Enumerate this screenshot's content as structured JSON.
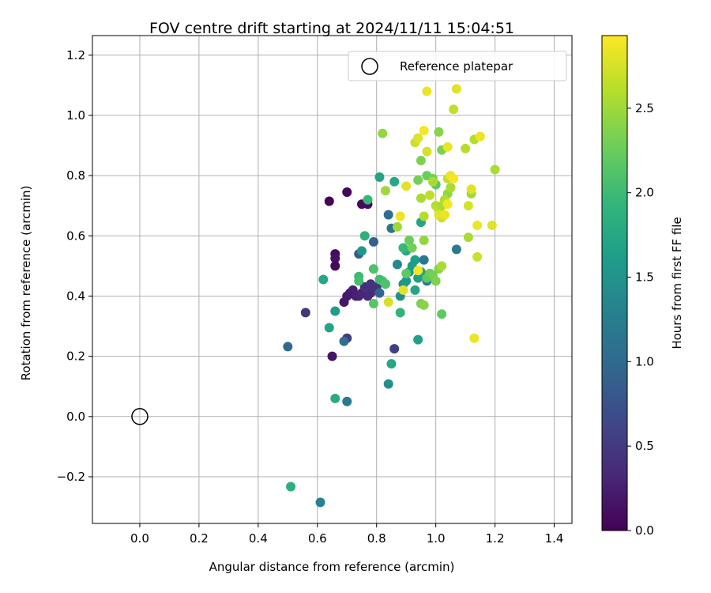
{
  "chart_data": {
    "type": "scatter",
    "title": "FOV centre drift starting at 2024/11/11 15:04:51",
    "xlabel": "Angular distance from reference (arcmin)",
    "ylabel": "Rotation from reference (arcmin)",
    "xlim": [
      -0.16,
      1.46
    ],
    "ylim": [
      -0.355,
      1.265
    ],
    "xticks": [
      0.0,
      0.2,
      0.4,
      0.6,
      0.8,
      1.0,
      1.2,
      1.4
    ],
    "xtick_labels": [
      "0.0",
      "0.2",
      "0.4",
      "0.6",
      "0.8",
      "1.0",
      "1.2",
      "1.4"
    ],
    "yticks": [
      -0.2,
      0.0,
      0.2,
      0.4,
      0.6,
      0.8,
      1.0,
      1.2
    ],
    "ytick_labels": [
      "−0.2",
      "0.0",
      "0.2",
      "0.4",
      "0.6",
      "0.8",
      "1.0",
      "1.2"
    ],
    "grid": true,
    "legend": {
      "position": "top-right",
      "label": "Reference platepar",
      "marker": "open-circle"
    },
    "reference_point": {
      "x": 0.0,
      "y": 0.0
    },
    "colorbar": {
      "label": "Hours from first FF file",
      "colormap": "viridis",
      "range": [
        0.0,
        2.93
      ],
      "ticks": [
        0.0,
        0.5,
        1.0,
        1.5,
        2.0,
        2.5
      ],
      "tick_labels": [
        "0.0",
        "0.5",
        "1.0",
        "1.5",
        "2.0",
        "2.5"
      ]
    },
    "viridis_stops": [
      "#440154",
      "#482878",
      "#3e4989",
      "#31688e",
      "#26828e",
      "#1f9e89",
      "#35b779",
      "#6ece58",
      "#b5de2b",
      "#fde725"
    ],
    "series": [
      {
        "points": [
          [
            0.7,
            0.745,
            0.05
          ],
          [
            0.64,
            0.715,
            0.02
          ],
          [
            0.75,
            0.705,
            0.08
          ],
          [
            0.77,
            0.705,
            0.1
          ],
          [
            0.66,
            0.54,
            0.12
          ],
          [
            0.66,
            0.525,
            0.14
          ],
          [
            0.66,
            0.5,
            0.06
          ],
          [
            0.69,
            0.38,
            0.18
          ],
          [
            0.7,
            0.4,
            0.2
          ],
          [
            0.71,
            0.41,
            0.22
          ],
          [
            0.72,
            0.42,
            0.24
          ],
          [
            0.73,
            0.4,
            0.26
          ],
          [
            0.74,
            0.4,
            0.28
          ],
          [
            0.75,
            0.41,
            0.3
          ],
          [
            0.76,
            0.41,
            0.32
          ],
          [
            0.77,
            0.4,
            0.34
          ],
          [
            0.78,
            0.41,
            0.36
          ],
          [
            0.79,
            0.42,
            0.38
          ],
          [
            0.76,
            0.43,
            0.4
          ],
          [
            0.78,
            0.44,
            0.42
          ],
          [
            0.8,
            0.43,
            0.44
          ],
          [
            0.56,
            0.345,
            0.45
          ],
          [
            0.7,
            0.26,
            0.5
          ],
          [
            0.65,
            0.2,
            0.15
          ],
          [
            0.86,
            0.225,
            0.55
          ],
          [
            0.74,
            0.54,
            0.85
          ],
          [
            0.79,
            0.58,
            0.9
          ],
          [
            0.81,
            0.41,
            0.95
          ],
          [
            0.83,
            0.44,
            1.0
          ],
          [
            0.84,
            0.67,
            1.05
          ],
          [
            0.85,
            0.625,
            1.1
          ],
          [
            0.5,
            0.232,
            1.0
          ],
          [
            0.69,
            0.25,
            1.05
          ],
          [
            0.7,
            0.05,
            1.2
          ],
          [
            0.61,
            -0.285,
            1.3
          ],
          [
            0.87,
            0.505,
            1.4
          ],
          [
            0.88,
            0.4,
            1.45
          ],
          [
            0.89,
            0.44,
            1.5
          ],
          [
            0.9,
            0.45,
            1.55
          ],
          [
            0.91,
            0.48,
            1.6
          ],
          [
            0.92,
            0.5,
            1.62
          ],
          [
            0.93,
            0.52,
            1.64
          ],
          [
            0.94,
            0.46,
            1.66
          ],
          [
            0.95,
            0.48,
            1.68
          ],
          [
            0.96,
            0.52,
            1.18
          ],
          [
            0.97,
            0.45,
            1.2
          ],
          [
            1.07,
            0.555,
            1.22
          ],
          [
            0.95,
            0.645,
            1.7
          ],
          [
            0.93,
            0.42,
            1.72
          ],
          [
            0.9,
            0.55,
            1.74
          ],
          [
            0.62,
            0.455,
            1.75
          ],
          [
            0.66,
            0.35,
            1.6
          ],
          [
            0.64,
            0.295,
            1.7
          ],
          [
            0.66,
            0.06,
            1.8
          ],
          [
            0.51,
            -0.233,
            1.85
          ],
          [
            0.84,
            0.108,
            1.45
          ],
          [
            0.85,
            0.175,
            1.75
          ],
          [
            0.94,
            0.255,
            1.65
          ],
          [
            0.75,
            0.55,
            1.55
          ],
          [
            0.76,
            0.6,
            1.85
          ],
          [
            0.77,
            0.72,
            1.95
          ],
          [
            0.81,
            0.795,
            1.7
          ],
          [
            0.86,
            0.78,
            1.75
          ],
          [
            0.88,
            0.345,
            1.9
          ],
          [
            0.89,
            0.56,
            1.95
          ],
          [
            0.74,
            0.465,
            2.0
          ],
          [
            0.74,
            0.45,
            2.05
          ],
          [
            0.79,
            0.49,
            2.1
          ],
          [
            0.79,
            0.375,
            2.15
          ],
          [
            0.81,
            0.455,
            2.0
          ],
          [
            0.82,
            0.45,
            2.05
          ],
          [
            0.83,
            0.44,
            2.1
          ],
          [
            0.9,
            0.475,
            2.2
          ],
          [
            0.91,
            0.585,
            2.25
          ],
          [
            0.92,
            0.56,
            2.3
          ],
          [
            0.95,
            0.375,
            2.35
          ],
          [
            0.96,
            0.37,
            2.4
          ],
          [
            0.97,
            0.46,
            2.2
          ],
          [
            0.98,
            0.475,
            2.25
          ],
          [
            0.99,
            0.47,
            2.3
          ],
          [
            1.0,
            0.45,
            2.35
          ],
          [
            1.01,
            0.49,
            2.4
          ],
          [
            1.02,
            0.34,
            2.2
          ],
          [
            0.82,
            0.94,
            2.45
          ],
          [
            0.83,
            0.75,
            2.5
          ],
          [
            0.94,
            0.785,
            2.3
          ],
          [
            0.95,
            0.85,
            2.35
          ],
          [
            0.97,
            0.8,
            2.25
          ],
          [
            0.99,
            0.79,
            2.3
          ],
          [
            1.0,
            0.77,
            2.2
          ],
          [
            1.01,
            0.945,
            2.4
          ],
          [
            1.02,
            0.885,
            2.35
          ],
          [
            1.04,
            0.74,
            2.45
          ],
          [
            1.05,
            0.76,
            2.5
          ],
          [
            0.95,
            0.725,
            2.55
          ],
          [
            0.96,
            0.665,
            2.6
          ],
          [
            0.98,
            0.735,
            2.65
          ],
          [
            0.99,
            0.78,
            2.55
          ],
          [
            1.0,
            0.7,
            2.6
          ],
          [
            1.01,
            0.685,
            2.65
          ],
          [
            1.02,
            0.66,
            2.7
          ],
          [
            1.02,
            0.7,
            2.55
          ],
          [
            1.03,
            0.72,
            2.6
          ],
          [
            1.04,
            0.79,
            2.65
          ],
          [
            1.05,
            0.76,
            2.55
          ],
          [
            0.87,
            0.63,
            2.5
          ],
          [
            0.96,
            0.585,
            2.45
          ],
          [
            1.02,
            0.5,
            2.55
          ],
          [
            1.06,
            1.02,
            2.65
          ],
          [
            1.1,
            0.89,
            2.6
          ],
          [
            1.11,
            0.595,
            2.55
          ],
          [
            1.12,
            0.74,
            2.5
          ],
          [
            1.13,
            0.92,
            2.6
          ],
          [
            1.14,
            0.53,
            2.7
          ],
          [
            1.2,
            0.82,
            2.55
          ],
          [
            0.93,
            0.91,
            2.7
          ],
          [
            0.94,
            0.925,
            2.8
          ],
          [
            0.96,
            0.95,
            2.9
          ],
          [
            0.97,
            0.88,
            2.75
          ],
          [
            0.97,
            1.08,
            2.85
          ],
          [
            1.04,
            0.895,
            2.85
          ],
          [
            1.07,
            1.088,
            2.8
          ],
          [
            1.15,
            0.93,
            2.85
          ],
          [
            0.88,
            0.665,
            2.85
          ],
          [
            0.9,
            0.765,
            2.8
          ],
          [
            0.84,
            0.38,
            2.75
          ],
          [
            0.89,
            0.42,
            2.8
          ],
          [
            0.94,
            0.485,
            2.88
          ],
          [
            1.01,
            0.67,
            2.8
          ],
          [
            1.03,
            0.67,
            2.85
          ],
          [
            1.04,
            0.705,
            2.88
          ],
          [
            1.05,
            0.8,
            2.85
          ],
          [
            1.06,
            0.79,
            2.9
          ],
          [
            1.11,
            0.7,
            2.75
          ],
          [
            1.12,
            0.755,
            2.8
          ],
          [
            1.14,
            0.635,
            2.85
          ],
          [
            1.19,
            0.635,
            2.8
          ],
          [
            1.13,
            0.26,
            2.85
          ]
        ]
      }
    ]
  }
}
